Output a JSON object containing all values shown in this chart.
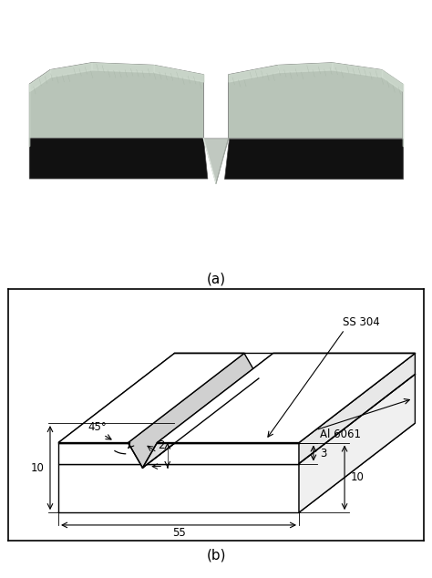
{
  "fig_width": 4.74,
  "fig_height": 6.34,
  "dpi": 100,
  "label_a": "(a)",
  "label_b": "(b)",
  "dim_length": "55",
  "dim_width": "10",
  "dim_total_height": "10",
  "dim_ss_height": "3",
  "dim_notch_depth": "2",
  "dim_notch_angle": "45°",
  "label_ss": "SS 304",
  "label_al": "Al 6061",
  "bg_color": "#ffffff",
  "line_color": "#000000",
  "photo_bg": "#8B0000",
  "specimen_top_color": "#b8c4b8",
  "specimen_dark_color": "#111111",
  "specimen_mid_color": "#888888"
}
